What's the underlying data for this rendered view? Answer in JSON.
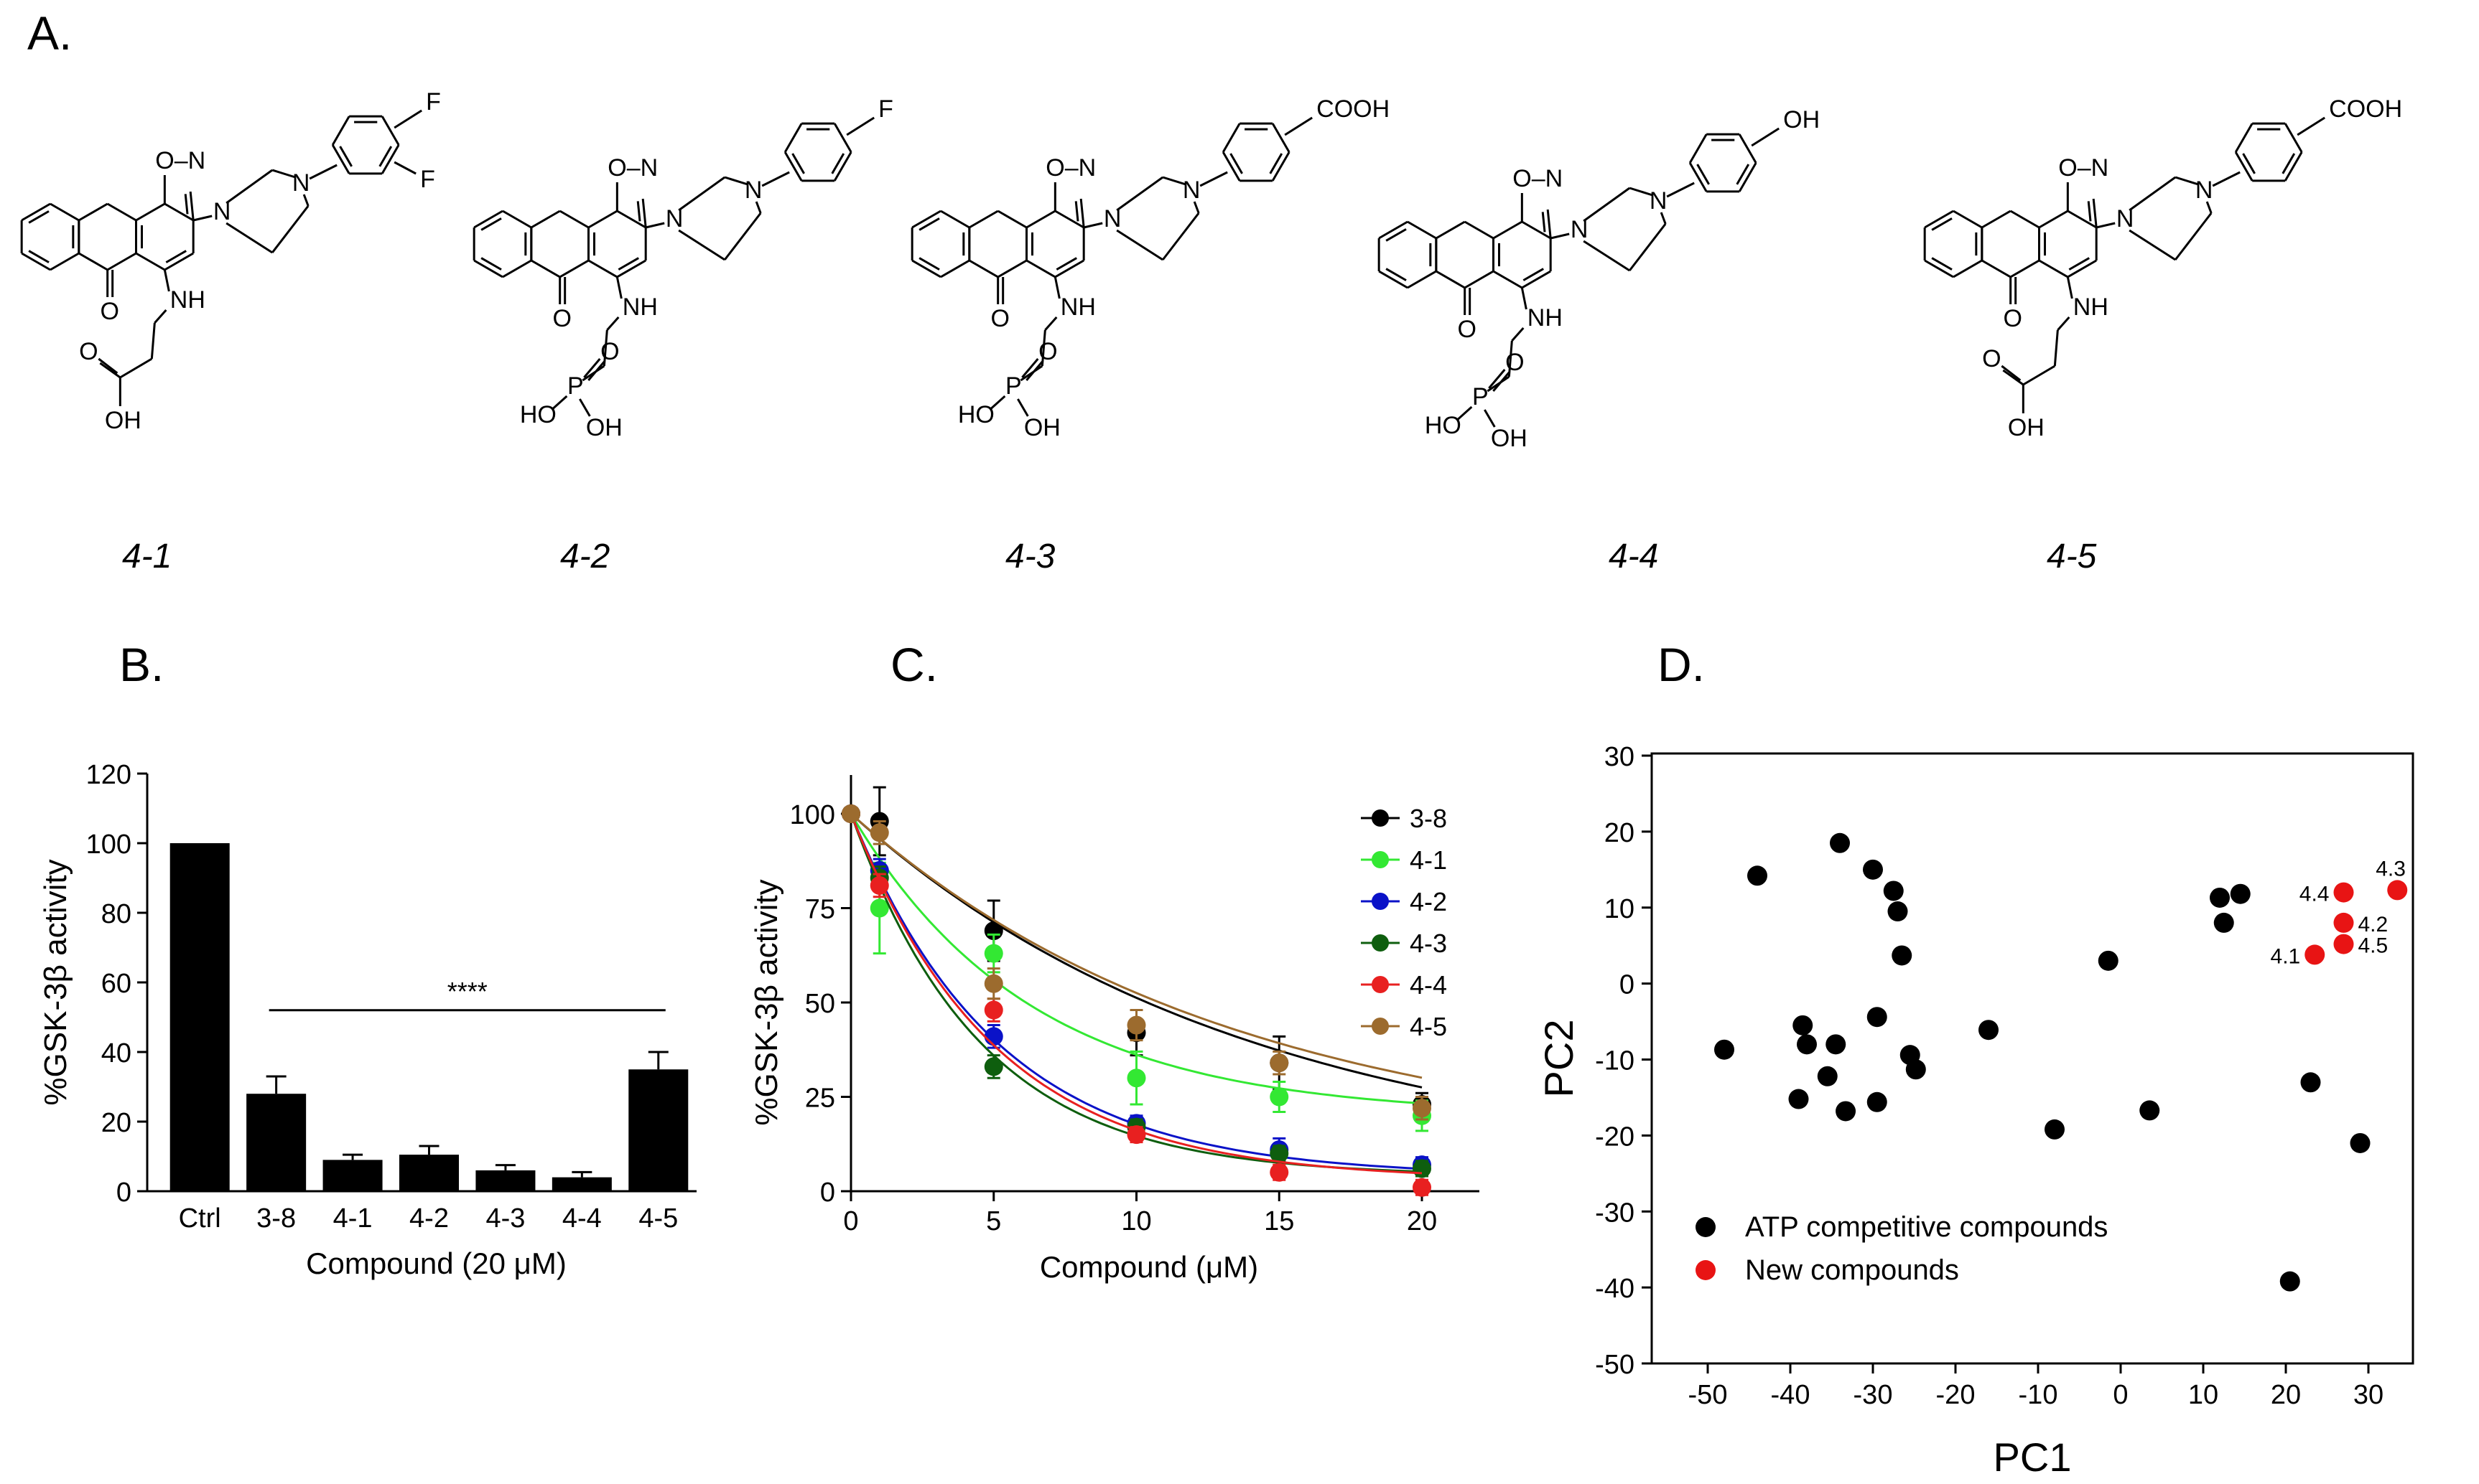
{
  "figure": {
    "panels": {
      "a": "A.",
      "b": "B.",
      "c": "C.",
      "d": "D."
    },
    "compounds": [
      {
        "id": "4-1",
        "label": "4-1",
        "aryl_substituents": [
          "F",
          "F"
        ],
        "linker": "NH-CH2CH2-COOH"
      },
      {
        "id": "4-2",
        "label": "4-2",
        "aryl_substituents": [
          "F"
        ],
        "linker": "NH-CH2CH2-PO3H2"
      },
      {
        "id": "4-3",
        "label": "4-3",
        "aryl_substituents": [
          "COOH"
        ],
        "linker": "NH-CH2CH2-PO3H2"
      },
      {
        "id": "4-4",
        "label": "4-4",
        "aryl_substituents": [
          "OH"
        ],
        "linker": "NH-CH2CH2-PO3H2"
      },
      {
        "id": "4-5",
        "label": "4-5",
        "aryl_substituents": [
          "COOH"
        ],
        "linker": "NH-CH2CH2-COOH"
      }
    ],
    "atom_labels": {
      "O": "O",
      "N": "N",
      "ON": "O–N",
      "NH": "NH",
      "OH": "OH",
      "HO": "HO",
      "P": "P",
      "F": "F",
      "COOH": "COOH"
    }
  },
  "chart_data": [
    {
      "panel": "B",
      "type": "bar",
      "categories": [
        "Ctrl",
        "3-8",
        "4-1",
        "4-2",
        "4-3",
        "4-4",
        "4-5"
      ],
      "values": [
        100,
        28,
        9,
        10.5,
        6,
        4,
        35
      ],
      "errors": [
        0,
        5,
        1.5,
        2.5,
        1.5,
        1.5,
        5
      ],
      "ylabel": "%GSK-3β activity",
      "xlabel": "Compound  (20 μM)",
      "ylim": [
        0,
        120
      ],
      "yticks": [
        0,
        20,
        40,
        60,
        80,
        100,
        120
      ],
      "significance": {
        "label": "****",
        "from": "3-8",
        "to": "4-5",
        "y": 52
      },
      "bar_color": "#000000"
    },
    {
      "panel": "C",
      "type": "line",
      "xlabel": "Compound (μM)",
      "ylabel": "%GSK-3β activity",
      "xlim": [
        0,
        20
      ],
      "ylim": [
        0,
        100
      ],
      "xticks": [
        0,
        5,
        10,
        15,
        20
      ],
      "yticks": [
        0,
        25,
        50,
        75,
        100
      ],
      "legend_position": "top-right",
      "x": [
        0,
        1,
        5,
        10,
        15,
        20
      ],
      "series": [
        {
          "name": "3-8",
          "color": "#000000",
          "values": [
            100,
            98,
            69,
            42,
            34,
            23
          ],
          "errors": [
            0,
            9,
            8,
            6,
            7,
            3
          ],
          "fit_k": 0.072,
          "plateau": 5
        },
        {
          "name": "4-1",
          "color": "#33e833",
          "values": [
            100,
            75,
            63,
            30,
            25,
            20
          ],
          "errors": [
            0,
            12,
            5,
            7,
            4,
            4
          ],
          "fit_k": 0.16,
          "plateau": 20
        },
        {
          "name": "4-2",
          "color": "#0a12c8",
          "values": [
            100,
            85,
            41,
            18,
            11,
            7
          ],
          "errors": [
            0,
            3,
            3,
            2,
            3,
            2
          ],
          "fit_k": 0.195,
          "plateau": 4
        },
        {
          "name": "4-3",
          "color": "#0e5e0e",
          "values": [
            100,
            83,
            33,
            17,
            10,
            6
          ],
          "errors": [
            0,
            3,
            3,
            2,
            2,
            2
          ],
          "fit_k": 0.22,
          "plateau": 4
        },
        {
          "name": "4-4",
          "color": "#e82020",
          "values": [
            100,
            81,
            48,
            15,
            5,
            1
          ],
          "errors": [
            0,
            3,
            3,
            2,
            2,
            2
          ],
          "fit_k": 0.2,
          "plateau": 3
        },
        {
          "name": "4-5",
          "color": "#9c6b2e",
          "values": [
            100,
            95,
            55,
            44,
            34,
            22
          ],
          "errors": [
            0,
            3,
            4,
            4,
            3,
            3
          ],
          "fit_k": 0.075,
          "plateau": 10
        }
      ]
    },
    {
      "panel": "D",
      "type": "scatter",
      "xlabel": "PC1",
      "ylabel": "PC2",
      "xlim": [
        -55,
        33
      ],
      "ylim": [
        -50,
        30
      ],
      "xticks": [
        -50,
        -40,
        -30,
        -20,
        -10,
        0,
        10,
        20,
        30
      ],
      "yticks": [
        -50,
        -40,
        -30,
        -20,
        -10,
        0,
        10,
        20,
        30
      ],
      "legend_position": "bottom-left",
      "series": [
        {
          "name": "ATP competitive compounds",
          "color": "#000000",
          "points": [
            [
              -48,
              -8.7
            ],
            [
              -44,
              14.2
            ],
            [
              -39,
              -15.2
            ],
            [
              -38.5,
              -5.5
            ],
            [
              -38,
              -8.0
            ],
            [
              -35.5,
              -12.2
            ],
            [
              -34.5,
              -8.0
            ],
            [
              -34,
              18.5
            ],
            [
              -33.3,
              -16.8
            ],
            [
              -30,
              15.0
            ],
            [
              -29.5,
              -4.4
            ],
            [
              -29.5,
              -15.6
            ],
            [
              -27.5,
              12.2
            ],
            [
              -27,
              9.5
            ],
            [
              -26.5,
              3.7
            ],
            [
              -25.5,
              -9.4
            ],
            [
              -24.8,
              -11.3
            ],
            [
              -16,
              -6.1
            ],
            [
              -8,
              -19.2
            ],
            [
              -1.5,
              3.0
            ],
            [
              3.5,
              -16.7
            ],
            [
              12,
              11.3
            ],
            [
              12.5,
              8.0
            ],
            [
              14.5,
              11.8
            ],
            [
              20.5,
              -39.2
            ],
            [
              23,
              -13.0
            ],
            [
              29,
              -21.0
            ]
          ]
        },
        {
          "name": "New compounds",
          "color": "#e81414",
          "points": [
            {
              "x": 23.5,
              "y": 3.8,
              "label": "4.1"
            },
            {
              "x": 27,
              "y": 8.0,
              "label": "4.2"
            },
            {
              "x": 33.5,
              "y": 12.3,
              "label": "4.3"
            },
            {
              "x": 27,
              "y": 12.0,
              "label": "4.4"
            },
            {
              "x": 27,
              "y": 5.2,
              "label": "4.5"
            }
          ]
        }
      ]
    }
  ]
}
